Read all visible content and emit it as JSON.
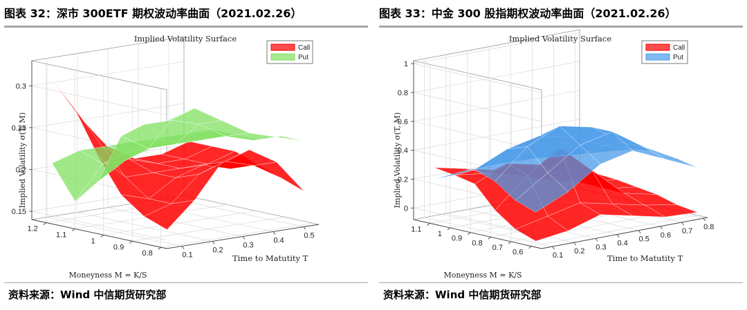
{
  "figures": [
    {
      "id": "left",
      "title": "图表 32：深市 300ETF 期权波动率曲面（2021.02.26）",
      "source": "资料来源：Wind 中信期货研究部",
      "chart_data": {
        "type": "surface",
        "title": "Implied Volatility Surface",
        "xlabel": "Time to Matutity T",
        "ylabel": "Moneyness M = K/S",
        "zlabel": "Implied Volatility σ(T, M)",
        "x_ticks": [
          0.1,
          0.2,
          0.3,
          0.4,
          0.5
        ],
        "y_ticks": [
          0.8,
          0.9,
          1,
          1.1,
          1.2
        ],
        "z_ticks": [
          0.15,
          0.2,
          0.25,
          0.3
        ],
        "xlim": [
          0.05,
          0.55
        ],
        "ylim": [
          0.78,
          1.25
        ],
        "zlim": [
          0.14,
          0.33
        ],
        "legend_position": "top-right",
        "series": [
          {
            "name": "Call",
            "color": "#ff0000",
            "T": [
              0.07,
              0.16,
              0.25,
              0.34,
              0.43,
              0.52
            ],
            "M": [
              0.8,
              0.88,
              0.96,
              1.04,
              1.12,
              1.2
            ],
            "z": [
              [
                0.16,
                0.19,
                0.23,
                0.24,
                0.22,
                0.18
              ],
              [
                0.17,
                0.18,
                0.21,
                0.22,
                0.21,
                0.19
              ],
              [
                0.19,
                0.18,
                0.2,
                0.21,
                0.2,
                0.2
              ],
              [
                0.23,
                0.2,
                0.2,
                0.2,
                0.2,
                0.21
              ],
              [
                0.28,
                0.23,
                0.21,
                0.2,
                0.2,
                0.21
              ],
              [
                0.31,
                0.26,
                0.22,
                0.2,
                0.2,
                0.21
              ]
            ]
          },
          {
            "name": "Put",
            "color": "#80e060",
            "T": [
              0.07,
              0.16,
              0.25,
              0.34,
              0.43,
              0.52
            ],
            "M": [
              0.8,
              0.88,
              0.96,
              1.04,
              1.12,
              1.2
            ],
            "z": [
              [
                0.29,
                0.3,
                0.28,
                0.26,
                0.25,
                0.24
              ],
              [
                0.28,
                0.28,
                0.27,
                0.25,
                0.24,
                0.24
              ],
              [
                0.26,
                0.24,
                0.24,
                0.24,
                0.24,
                0.23
              ],
              [
                0.2,
                0.22,
                0.23,
                0.23,
                0.23,
                0.23
              ],
              [
                0.17,
                0.21,
                0.22,
                0.23,
                0.23,
                0.23
              ],
              [
                0.21,
                0.22,
                0.22,
                0.22,
                0.22,
                0.22
              ]
            ]
          }
        ]
      }
    },
    {
      "id": "right",
      "title": "图表 33：中金 300 股指期权波动率曲面（2021.02.26）",
      "source": "资料来源：Wind 中信期货研究部",
      "chart_data": {
        "type": "surface",
        "title": "Implied Volatility Surface",
        "xlabel": "Time to Matutity T",
        "ylabel": "Moneyness M = K/S",
        "zlabel": "Implied Volatility σ(T, M)",
        "x_ticks": [
          0.1,
          0.2,
          0.3,
          0.4,
          0.5,
          0.6,
          0.7,
          0.8
        ],
        "y_ticks": [
          0.6,
          0.7,
          0.8,
          0.9,
          1,
          1.1
        ],
        "z_ticks": [
          0,
          0.2,
          0.4,
          0.6,
          0.8,
          1
        ],
        "xlim": [
          0.05,
          0.82
        ],
        "ylim": [
          0.55,
          1.18
        ],
        "zlim": [
          -0.08,
          1.02
        ],
        "legend_position": "top-right",
        "series": [
          {
            "name": "Call",
            "color": "#ff0000",
            "T": [
              0.07,
              0.22,
              0.37,
              0.52,
              0.67,
              0.82
            ],
            "M": [
              0.6,
              0.7,
              0.8,
              0.9,
              1.0,
              1.1
            ],
            "z": [
              [
                -0.05,
                -0.02,
                0.05,
                0.0,
                -0.05,
                -0.06
              ],
              [
                0.0,
                0.05,
                0.1,
                0.05,
                0.0,
                -0.04
              ],
              [
                0.1,
                0.3,
                0.45,
                0.25,
                0.05,
                0.0
              ],
              [
                0.25,
                0.35,
                0.3,
                0.15,
                0.05,
                0.02
              ],
              [
                0.28,
                0.25,
                0.2,
                0.12,
                0.06,
                0.04
              ],
              [
                0.3,
                0.25,
                0.2,
                0.1,
                0.06,
                0.05
              ]
            ]
          },
          {
            "name": "Put",
            "color": "#4a9be8",
            "T": [
              0.07,
              0.22,
              0.37,
              0.52,
              0.67,
              0.82
            ],
            "M": [
              0.6,
              0.7,
              0.8,
              0.9,
              1.0,
              1.1
            ],
            "z": [
              [
                0.15,
                0.25,
                0.4,
                0.45,
                0.35,
                0.25
              ],
              [
                0.2,
                0.35,
                0.5,
                0.55,
                0.4,
                0.28
              ],
              [
                0.3,
                0.5,
                0.6,
                0.55,
                0.4,
                0.3
              ],
              [
                0.35,
                0.45,
                0.5,
                0.45,
                0.35,
                0.28
              ],
              [
                0.28,
                0.3,
                0.3,
                0.28,
                0.26,
                0.24
              ],
              [
                0.22,
                0.24,
                0.24,
                0.23,
                0.22,
                0.2
              ]
            ]
          }
        ]
      }
    }
  ]
}
